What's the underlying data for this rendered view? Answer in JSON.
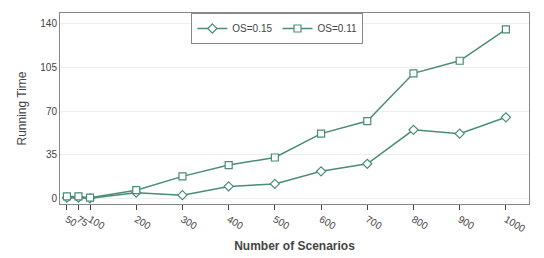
{
  "chart_data": {
    "type": "line",
    "x": [
      50,
      75,
      100,
      200,
      300,
      400,
      500,
      600,
      700,
      800,
      900,
      1000
    ],
    "series": [
      {
        "name": "OS=0.15",
        "color": "#4a8c78",
        "marker": "diamond",
        "line_style": "solid",
        "values": [
          1,
          1,
          0.5,
          5,
          3,
          10,
          12,
          22,
          28,
          55,
          52,
          65
        ]
      },
      {
        "name": "OS=0.11",
        "color": "#4a8c78",
        "marker": "square",
        "line_style": "solid",
        "values": [
          2,
          2,
          1,
          7,
          18,
          27,
          33,
          52,
          62,
          100,
          110,
          135
        ]
      }
    ],
    "xlabel": "Number of Scenarios",
    "ylabel": "Running Time",
    "xlim": [
      35,
      1050
    ],
    "xticks": [
      50,
      75,
      100,
      200,
      300,
      400,
      500,
      600,
      700,
      800,
      900,
      1000
    ],
    "ylim": [
      -4,
      148
    ],
    "yticks": [
      0,
      35,
      70,
      105,
      140
    ],
    "grid": true,
    "legend": "upper left"
  }
}
